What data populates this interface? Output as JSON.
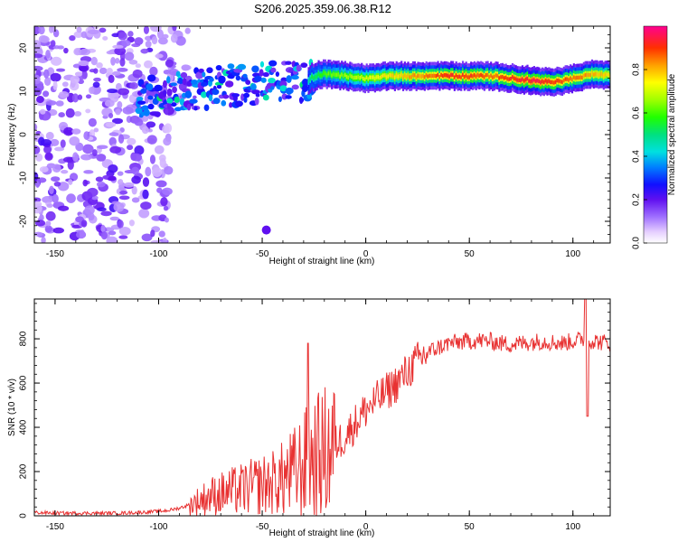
{
  "title": "S206.2025.359.06.38.R12",
  "chart_data": [
    {
      "type": "heatmap",
      "name": "spectrogram",
      "xlabel": "Height of straight line (km)",
      "ylabel": "Frequency (Hz)",
      "xlim": [
        -160,
        118
      ],
      "ylim": [
        -25,
        25
      ],
      "xticks": [
        -150,
        -100,
        -50,
        0,
        50,
        100
      ],
      "yticks": [
        -20,
        -10,
        0,
        10,
        20
      ],
      "colorbar": {
        "label": "Normalized spectral amplitude",
        "range": [
          0,
          1
        ],
        "ticks": [
          0.0,
          0.2,
          0.4,
          0.6,
          0.8
        ]
      },
      "ridge": {
        "description_of_data": "dominant frequency track vs height",
        "x": [
          -110,
          -100,
          -90,
          -80,
          -70,
          -60,
          -50,
          -40,
          -30,
          -25,
          -20,
          -10,
          0,
          10,
          20,
          30,
          40,
          50,
          60,
          70,
          80,
          90,
          100,
          110,
          118
        ],
        "freq": [
          8,
          9,
          10,
          10.5,
          11,
          11.5,
          12,
          12.5,
          12,
          13.5,
          14,
          13.5,
          13,
          13.5,
          13.5,
          13.5,
          13.5,
          13.5,
          13.5,
          13,
          12.5,
          12,
          13,
          14,
          13.5
        ],
        "amplitude": [
          0.3,
          0.35,
          0.4,
          0.35,
          0.4,
          0.4,
          0.45,
          0.5,
          0.45,
          0.55,
          0.6,
          0.65,
          0.7,
          0.75,
          0.8,
          0.85,
          0.9,
          0.9,
          0.85,
          0.9,
          0.95,
          0.9,
          0.85,
          0.8,
          0.75
        ]
      }
    },
    {
      "type": "line",
      "name": "snr",
      "xlabel": "Height of straight line (km)",
      "ylabel": "SNR (10 * v/v)",
      "xlim": [
        -160,
        118
      ],
      "ylim": [
        0,
        980
      ],
      "xticks": [
        -150,
        -100,
        -50,
        0,
        50,
        100
      ],
      "yticks": [
        0,
        200,
        400,
        600,
        800
      ],
      "color": "#e83232",
      "series": [
        {
          "name": "SNR",
          "x": [
            -160,
            -150,
            -140,
            -130,
            -120,
            -110,
            -100,
            -95,
            -90,
            -85,
            -80,
            -75,
            -70,
            -65,
            -60,
            -55,
            -50,
            -45,
            -40,
            -35,
            -30,
            -25,
            -20,
            -15,
            -10,
            -5,
            0,
            5,
            10,
            15,
            20,
            25,
            30,
            35,
            40,
            45,
            50,
            55,
            60,
            65,
            70,
            75,
            80,
            85,
            90,
            95,
            100,
            105,
            110,
            118
          ],
          "y": [
            15,
            12,
            12,
            12,
            12,
            15,
            20,
            25,
            35,
            50,
            70,
            90,
            100,
            110,
            120,
            130,
            140,
            150,
            170,
            190,
            230,
            260,
            280,
            320,
            360,
            420,
            480,
            520,
            560,
            600,
            650,
            700,
            740,
            760,
            780,
            785,
            790,
            792,
            790,
            780,
            775,
            780,
            785,
            790,
            785,
            780,
            790,
            800,
            790,
            780
          ]
        }
      ],
      "annotations": [
        {
          "x": -28,
          "y": 780,
          "text": ""
        },
        {
          "x": 106,
          "y": 980,
          "text": ""
        }
      ]
    }
  ]
}
